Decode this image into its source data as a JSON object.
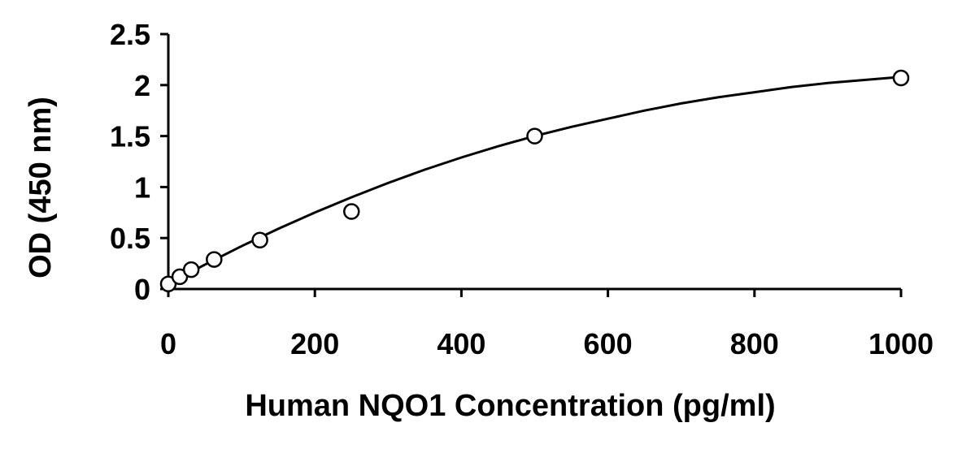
{
  "chart_data": {
    "type": "scatter",
    "title": "",
    "xlabel": "Human NQO1 Concentration (pg/ml)",
    "ylabel": "OD (450 nm)",
    "xlim": [
      0,
      1000
    ],
    "ylim": [
      0,
      2.5
    ],
    "x_ticks": [
      "0",
      "200",
      "400",
      "600",
      "800",
      "1000"
    ],
    "y_ticks": [
      "0",
      "0.5",
      "1",
      "1.5",
      "2",
      "2.5"
    ],
    "grid": false,
    "legend": "none",
    "series": [
      {
        "x": [
          0,
          15.6,
          31.25,
          62.5,
          125,
          250,
          500,
          1000
        ],
        "y": [
          0.05,
          0.12,
          0.19,
          0.29,
          0.48,
          0.76,
          1.5,
          2.07
        ],
        "marker": "open-circle"
      }
    ],
    "fit_curve": {
      "style": "solid",
      "x": [
        0,
        50,
        100,
        150,
        200,
        250,
        300,
        350,
        400,
        450,
        500,
        550,
        600,
        650,
        700,
        750,
        800,
        850,
        900,
        950,
        1000
      ],
      "y": [
        0.05,
        0.24,
        0.42,
        0.59,
        0.75,
        0.9,
        1.04,
        1.17,
        1.29,
        1.4,
        1.5,
        1.59,
        1.67,
        1.75,
        1.82,
        1.88,
        1.93,
        1.98,
        2.02,
        2.05,
        2.08
      ]
    },
    "colors": {
      "axis": "#000000",
      "marker_fill": "#ffffff",
      "line": "#000000"
    }
  }
}
